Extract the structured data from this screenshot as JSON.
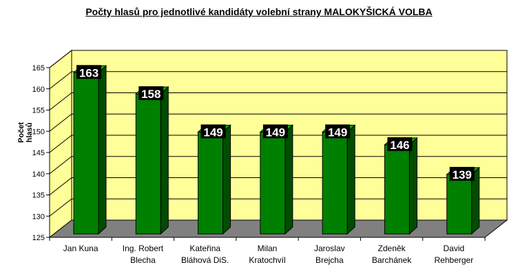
{
  "title": "Počty hlasů pro jednotlivé kandidáty volební strany MALOKYŠICKÁ VOLBA",
  "chart_data": {
    "type": "bar",
    "title": "Počty hlasů pro jednotlivé kandidáty volební strany MALOKYŠICKÁ VOLBA",
    "xlabel": "",
    "ylabel": "Počet hlasů",
    "ylim": [
      125,
      165
    ],
    "yticks": [
      125,
      130,
      135,
      140,
      145,
      150,
      155,
      160,
      165
    ],
    "categories": [
      [
        "Jan Kuna"
      ],
      [
        "Ing. Robert",
        "Blecha"
      ],
      [
        "Kateřina",
        "Bláhová DiS."
      ],
      [
        "Milan",
        "Kratochvíl"
      ],
      [
        "Jaroslav",
        "Brejcha"
      ],
      [
        "Zdeněk",
        "Barchánek"
      ],
      [
        "David",
        "Rehberger"
      ]
    ],
    "values": [
      163,
      158,
      149,
      149,
      149,
      146,
      139
    ],
    "grid": true,
    "legend": "none",
    "colors": {
      "bar_front": "#008000",
      "bar_side": "#004d00",
      "bar_top": "#00b400",
      "wall": "#ffff99",
      "floor": "#808080",
      "label_bg": "#000000",
      "label_text": "#ffffff"
    }
  }
}
